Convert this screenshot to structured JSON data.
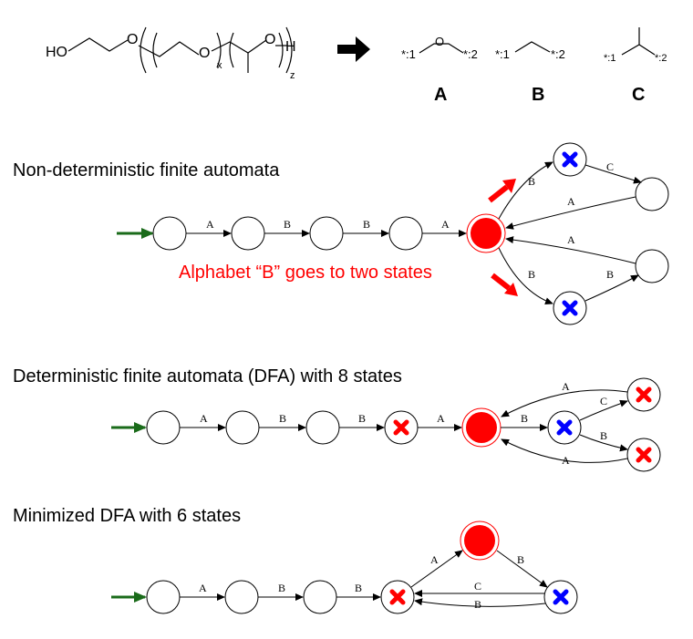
{
  "molecule": {
    "ho": "HO",
    "o1": "O",
    "o2": "O",
    "o3": "O",
    "h": "H",
    "sub_x": "x",
    "sub_z": "z"
  },
  "fragments": [
    {
      "letter": "A",
      "left": "*:1",
      "right": "*:2",
      "atom": "O"
    },
    {
      "letter": "B",
      "left": "*:1",
      "right": "*:2"
    },
    {
      "letter": "C",
      "left": "*:1",
      "right": "*:2"
    }
  ],
  "sections": {
    "nfa": {
      "title": "Non-deterministic finite automata",
      "note": "Alphabet “B” goes to two states"
    },
    "dfa": {
      "title": "Deterministic finite automata (DFA) with 8 states"
    },
    "min": {
      "title": "Minimized DFA with 6 states"
    }
  },
  "edges": {
    "nfa": [
      "A",
      "B",
      "B",
      "A",
      "B",
      "C",
      "A",
      "A",
      "B",
      "B"
    ],
    "dfa": [
      "A",
      "B",
      "B",
      "A",
      "B",
      "A",
      "C",
      "B",
      "A"
    ],
    "min": [
      "A",
      "B",
      "B",
      "A",
      "B",
      "C",
      "B"
    ]
  },
  "colors": {
    "accept": "#ff0000",
    "blue_mark": "#0000ff",
    "red_mark": "#ff0000",
    "start_arrow": "#1a6b1a",
    "arrow_black": "#000000"
  },
  "icons": {
    "start": "start-arrow-icon",
    "blue_cross": "blue-cross-icon",
    "red_cross": "red-cross-icon",
    "reaction": "reaction-arrow-icon"
  }
}
